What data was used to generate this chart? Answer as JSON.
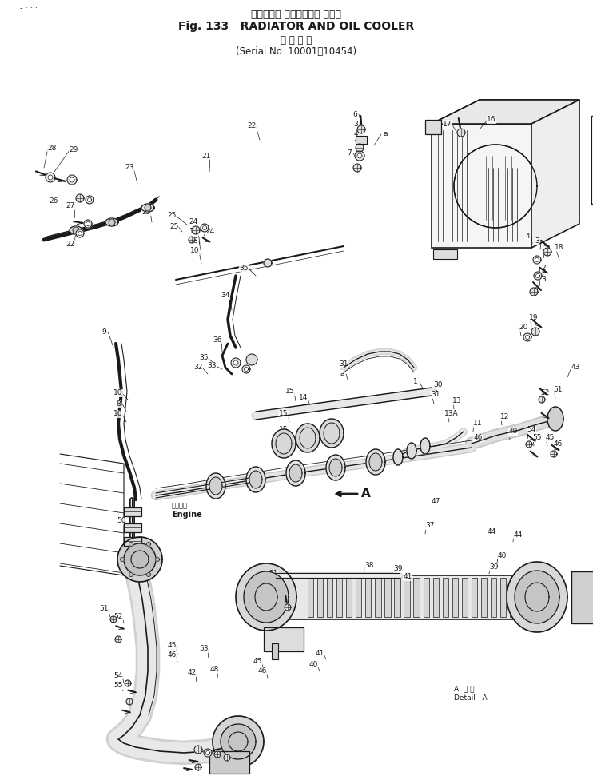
{
  "title_jp": "ラジエータ およびオイル クーラ",
  "title_en": "Fig. 133   RADIATOR AND OIL COOLER",
  "subtitle_jp": "適 用 号 機",
  "subtitle_serial": "(Serial No. 10001～10454)",
  "bg_color": "#ffffff",
  "lc": "#1a1a1a",
  "fig_width": 7.42,
  "fig_height": 9.81,
  "dpi": 100
}
